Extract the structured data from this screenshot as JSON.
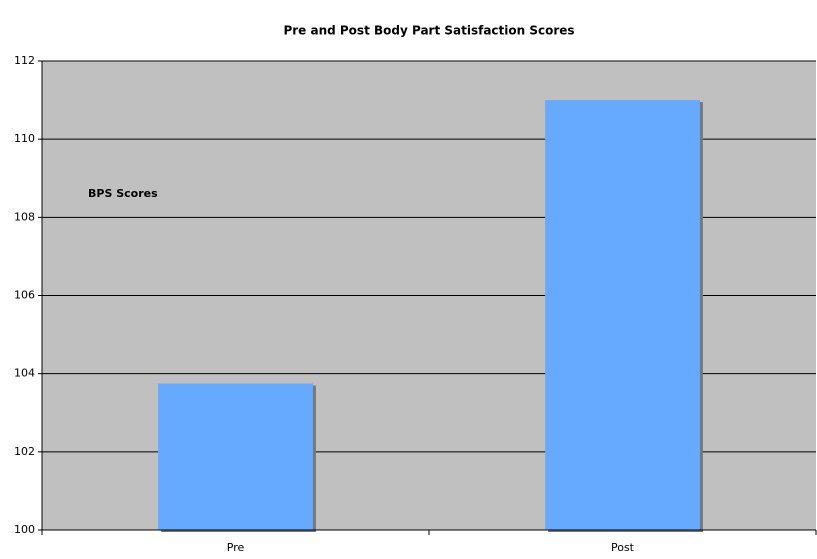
{
  "chart_data": {
    "type": "bar",
    "title": "Pre and Post Body Part Satisfaction Scores",
    "y_axis_label": "BPS Scores",
    "categories": [
      "Pre",
      "Post"
    ],
    "values": [
      103.75,
      111
    ],
    "color": "#66aaff",
    "ylim": [
      100,
      112
    ],
    "yticks": [
      100,
      102,
      104,
      106,
      108,
      110,
      112
    ],
    "grid": true,
    "plot_background": "#c0c0c0"
  }
}
